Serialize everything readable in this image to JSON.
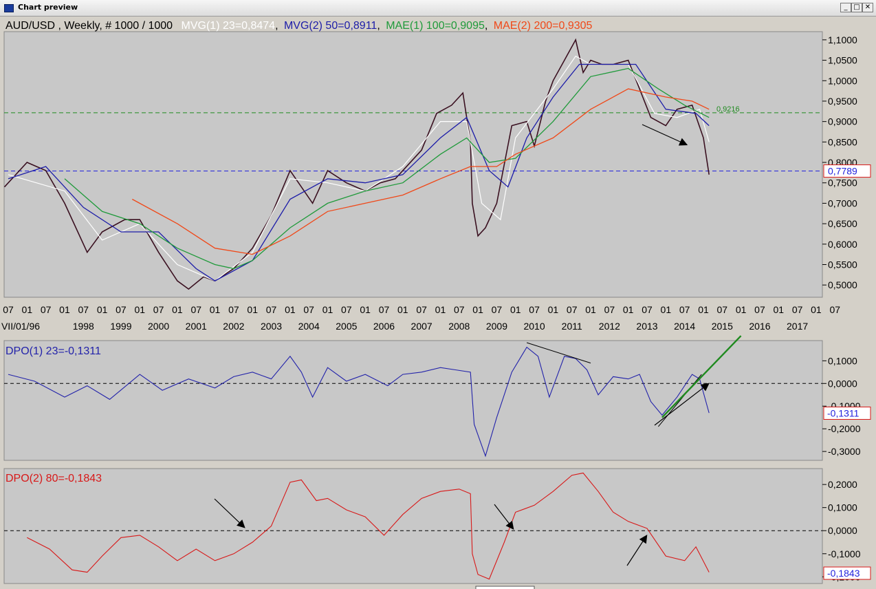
{
  "window": {
    "title": "Chart preview",
    "minimize_glyph": "_",
    "maximize_glyph": "□",
    "close_glyph": "✕"
  },
  "colors": {
    "background": "#c8c8c8",
    "mvg1": "#ffffff",
    "mvg2": "#1c1ca8",
    "mae1": "#1f9a3a",
    "mae2": "#f04818",
    "dpo1": "#2222aa",
    "dpo2": "#d81818",
    "hline": "#2222dd",
    "resistance": "#1f8a1f"
  },
  "chart_data": [
    {
      "type": "line",
      "panel": "price",
      "title_parts": [
        "AUD/USD , Weekly, # 1000 / 1000",
        "MVG(1) 23=0,8474",
        "MVG(2) 50=0,8911",
        "MAE(1) 100=0,9095",
        "MAE(2) 200=0,9305"
      ],
      "ylim": [
        0.47,
        1.12
      ],
      "y_ticks": [
        "1,1000",
        "1,0500",
        "1,0000",
        "0,9500",
        "0,9000",
        "0,8500",
        "0,8000",
        "0,7500",
        "0,7000",
        "0,6500",
        "0,6000",
        "0,5500",
        "0,5000"
      ],
      "x_month_labels": [
        "07",
        "01",
        "07",
        "01",
        "07",
        "01",
        "07",
        "01",
        "07",
        "01",
        "07",
        "01",
        "07",
        "01",
        "07",
        "01",
        "07",
        "01",
        "07",
        "01",
        "07",
        "01",
        "07",
        "01",
        "07",
        "01",
        "07",
        "01",
        "07",
        "01",
        "07",
        "01",
        "07",
        "01",
        "07",
        "01",
        "07",
        "01",
        "07",
        "01",
        "07",
        "01",
        "07",
        "01",
        "07"
      ],
      "x_year_labels": [
        "VII/01/96",
        "1998",
        "1999",
        "2000",
        "2001",
        "2002",
        "2003",
        "2004",
        "2005",
        "2006",
        "2007",
        "2008",
        "2009",
        "2010",
        "2011",
        "2012",
        "2013",
        "2014",
        "2015",
        "2016",
        "2017"
      ],
      "current_value_label": "0,7789",
      "hline_green": 0.9216,
      "hline_green_label": "0,9216",
      "hline_blue": 0.7789,
      "series": [
        {
          "name": "AUD/USD",
          "x": [
            1996.4,
            1997.0,
            1997.5,
            1998.0,
            1998.6,
            1999.0,
            1999.6,
            2000.0,
            2000.5,
            2001.0,
            2001.3,
            2001.7,
            2002.0,
            2002.5,
            2003.0,
            2003.5,
            2004.0,
            2004.3,
            2004.6,
            2005.0,
            2005.5,
            2006.0,
            2006.4,
            2006.8,
            2007.0,
            2007.5,
            2007.9,
            2008.3,
            2008.6,
            2008.8,
            2008.85,
            2009.0,
            2009.2,
            2009.5,
            2009.9,
            2010.3,
            2010.5,
            2010.8,
            2011.0,
            2011.3,
            2011.6,
            2011.8,
            2012.0,
            2012.3,
            2012.6,
            2013.0,
            2013.3,
            2013.6,
            2014.0,
            2014.3,
            2014.7,
            2014.85,
            2015.0,
            2015.15
          ],
          "values": [
            0.74,
            0.8,
            0.78,
            0.7,
            0.58,
            0.63,
            0.66,
            0.66,
            0.58,
            0.51,
            0.49,
            0.52,
            0.51,
            0.54,
            0.59,
            0.67,
            0.78,
            0.74,
            0.7,
            0.78,
            0.75,
            0.73,
            0.75,
            0.76,
            0.78,
            0.83,
            0.92,
            0.94,
            0.97,
            0.85,
            0.7,
            0.62,
            0.64,
            0.7,
            0.89,
            0.9,
            0.84,
            0.95,
            1.0,
            1.05,
            1.1,
            1.02,
            1.05,
            1.04,
            1.04,
            1.05,
            0.98,
            0.91,
            0.89,
            0.93,
            0.94,
            0.9,
            0.86,
            0.77
          ]
        },
        {
          "name": "MVG(1) 23",
          "x": [
            1996.5,
            1998.0,
            1999.0,
            2000.0,
            2001.0,
            2002.0,
            2003.0,
            2004.0,
            2005.0,
            2006.0,
            2007.0,
            2008.0,
            2008.7,
            2009.1,
            2009.6,
            2010.0,
            2011.0,
            2011.6,
            2012.0,
            2013.0,
            2013.7,
            2014.3,
            2014.9,
            2015.15
          ],
          "values": [
            0.77,
            0.73,
            0.61,
            0.65,
            0.55,
            0.51,
            0.58,
            0.76,
            0.75,
            0.73,
            0.79,
            0.9,
            0.9,
            0.7,
            0.66,
            0.86,
            0.98,
            1.06,
            1.04,
            1.04,
            0.92,
            0.91,
            0.93,
            0.85
          ]
        },
        {
          "name": "MVG(2) 50",
          "x": [
            1996.5,
            1997.5,
            1998.5,
            1999.5,
            2000.5,
            2001.5,
            2002.0,
            2003.0,
            2004.0,
            2005.0,
            2006.0,
            2007.0,
            2008.0,
            2008.7,
            2009.3,
            2009.8,
            2010.3,
            2011.0,
            2011.7,
            2012.5,
            2013.2,
            2014.0,
            2014.8,
            2015.15
          ],
          "values": [
            0.76,
            0.79,
            0.69,
            0.63,
            0.63,
            0.54,
            0.51,
            0.56,
            0.71,
            0.76,
            0.75,
            0.77,
            0.86,
            0.91,
            0.78,
            0.74,
            0.86,
            0.96,
            1.04,
            1.04,
            1.04,
            0.93,
            0.92,
            0.89
          ]
        },
        {
          "name": "MAE(1) 100",
          "x": [
            1998.0,
            1999.0,
            2000.0,
            2001.0,
            2002.0,
            2002.5,
            2003.0,
            2004.0,
            2005.0,
            2006.0,
            2007.0,
            2008.0,
            2008.7,
            2009.3,
            2010.0,
            2011.0,
            2012.0,
            2013.0,
            2013.8,
            2014.5,
            2015.15
          ],
          "values": [
            0.76,
            0.68,
            0.65,
            0.59,
            0.55,
            0.54,
            0.56,
            0.64,
            0.7,
            0.73,
            0.75,
            0.82,
            0.86,
            0.8,
            0.81,
            0.9,
            1.01,
            1.03,
            0.98,
            0.94,
            0.91
          ]
        },
        {
          "name": "MAE(2) 200",
          "x": [
            1999.8,
            2001.0,
            2002.0,
            2003.0,
            2004.0,
            2005.0,
            2006.0,
            2007.0,
            2008.0,
            2008.8,
            2009.5,
            2010.0,
            2011.0,
            2012.0,
            2013.0,
            2014.0,
            2014.7,
            2015.15
          ],
          "values": [
            0.71,
            0.65,
            0.59,
            0.575,
            0.62,
            0.68,
            0.7,
            0.72,
            0.76,
            0.79,
            0.79,
            0.82,
            0.86,
            0.93,
            0.98,
            0.96,
            0.95,
            0.93
          ]
        }
      ]
    },
    {
      "type": "line",
      "panel": "dpo1",
      "title": "DPO(1) 23=-0,1311",
      "ylim": [
        -0.33,
        0.18
      ],
      "y_ticks": [
        "0,1000",
        "0,0000",
        "-0,1000",
        "-0,2000",
        "-0,3000"
      ],
      "current_value_label": "-0,1311",
      "series": [
        {
          "name": "DPO(1) 23",
          "x": [
            1996.5,
            1997.2,
            1998.0,
            1998.6,
            1999.2,
            2000.0,
            2000.6,
            2001.3,
            2002.0,
            2002.5,
            2003.0,
            2003.5,
            2004.0,
            2004.3,
            2004.6,
            2005.0,
            2005.5,
            2006.0,
            2006.6,
            2007.0,
            2007.5,
            2008.0,
            2008.4,
            2008.8,
            2008.9,
            2009.2,
            2009.5,
            2009.9,
            2010.3,
            2010.6,
            2010.9,
            2011.3,
            2011.6,
            2011.9,
            2012.2,
            2012.6,
            2013.0,
            2013.3,
            2013.6,
            2013.9,
            2014.3,
            2014.7,
            2014.9,
            2015.15
          ],
          "values": [
            0.04,
            0.01,
            -0.06,
            -0.01,
            -0.07,
            0.04,
            -0.03,
            0.02,
            -0.02,
            0.03,
            0.05,
            0.02,
            0.12,
            0.05,
            -0.06,
            0.07,
            0.01,
            0.04,
            -0.01,
            0.04,
            0.05,
            0.07,
            0.06,
            0.05,
            -0.18,
            -0.32,
            -0.15,
            0.05,
            0.16,
            0.12,
            -0.06,
            0.12,
            0.11,
            0.06,
            -0.05,
            0.03,
            0.02,
            0.04,
            -0.08,
            -0.14,
            -0.06,
            0.04,
            0.02,
            -0.13
          ]
        },
        {
          "name": "trendline-top",
          "x": [
            2010.3,
            2012.0
          ],
          "values": [
            0.18,
            0.09
          ]
        },
        {
          "name": "trendline-bottom",
          "x": [
            2013.8,
            2014.95
          ],
          "values": [
            -0.19,
            0.04
          ]
        },
        {
          "name": "trendline-green",
          "x": [
            2013.9,
            2016.0
          ],
          "values": [
            -0.15,
            0.21
          ]
        }
      ]
    },
    {
      "type": "line",
      "panel": "dpo2",
      "title": "DPO(2) 80=-0,1843",
      "ylim": [
        -0.22,
        0.26
      ],
      "y_ticks": [
        "0,2000",
        "0,1000",
        "0,0000",
        "-0,1000",
        "-0,2000"
      ],
      "current_value_label": "-0,1843",
      "series": [
        {
          "name": "DPO(2) 80",
          "x": [
            1997.0,
            1997.6,
            1998.2,
            1998.6,
            1999.0,
            1999.5,
            2000.0,
            2000.5,
            2001.0,
            2001.5,
            2002.0,
            2002.5,
            2003.0,
            2003.5,
            2004.0,
            2004.3,
            2004.7,
            2005.0,
            2005.5,
            2006.0,
            2006.5,
            2007.0,
            2007.5,
            2008.0,
            2008.5,
            2008.8,
            2008.85,
            2009.0,
            2009.3,
            2009.7,
            2010.0,
            2010.5,
            2011.0,
            2011.5,
            2011.8,
            2012.2,
            2012.6,
            2013.0,
            2013.5,
            2014.0,
            2014.5,
            2014.8,
            2015.15
          ],
          "values": [
            -0.03,
            -0.08,
            -0.17,
            -0.18,
            -0.11,
            -0.03,
            -0.02,
            -0.07,
            -0.13,
            -0.08,
            -0.13,
            -0.1,
            -0.05,
            0.02,
            0.21,
            0.22,
            0.13,
            0.14,
            0.09,
            0.06,
            -0.02,
            0.07,
            0.14,
            0.17,
            0.18,
            0.16,
            -0.1,
            -0.19,
            -0.21,
            -0.05,
            0.08,
            0.11,
            0.17,
            0.24,
            0.25,
            0.17,
            0.08,
            0.04,
            0.01,
            -0.11,
            -0.13,
            -0.07,
            -0.18
          ]
        }
      ]
    }
  ]
}
